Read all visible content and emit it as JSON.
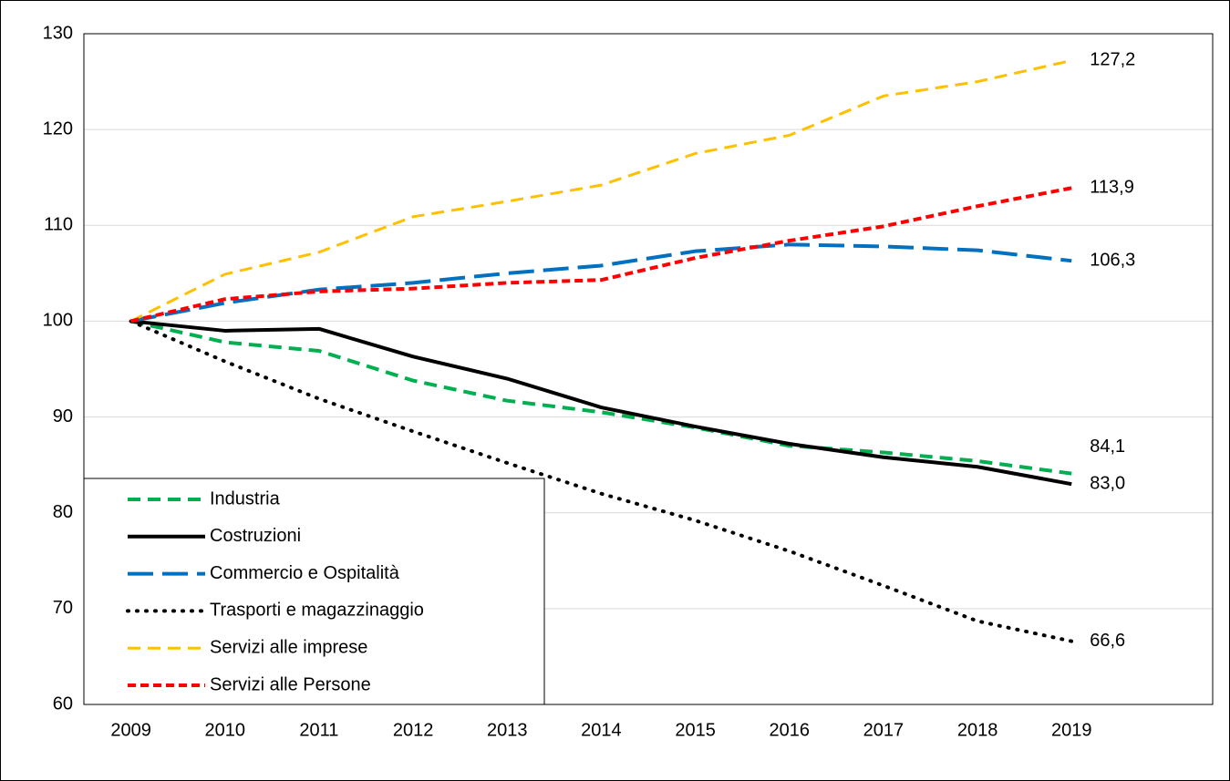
{
  "chart_data": {
    "type": "line",
    "categories": [
      "2009",
      "2010",
      "2011",
      "2012",
      "2013",
      "2014",
      "2015",
      "2016",
      "2017",
      "2018",
      "2019"
    ],
    "ylim": [
      60,
      130
    ],
    "yticks": [
      60,
      70,
      80,
      90,
      100,
      110,
      120,
      130
    ],
    "grid": true,
    "legend": "lower-left",
    "series": [
      {
        "name": "Industria",
        "color": "#00b050",
        "dash": "dashed",
        "values": [
          100,
          97.8,
          96.9,
          93.8,
          91.7,
          90.5,
          88.9,
          87.0,
          86.3,
          85.4,
          84.1
        ],
        "value_labels": [
          null,
          null,
          null,
          null,
          null,
          null,
          null,
          null,
          null,
          null,
          "84,1"
        ]
      },
      {
        "name": "Costruzioni",
        "color": "#000000",
        "dash": "solid",
        "values": [
          100,
          99.0,
          99.2,
          96.3,
          94.0,
          91.0,
          89.0,
          87.2,
          85.8,
          84.8,
          83.0
        ],
        "value_labels": [
          null,
          null,
          null,
          null,
          null,
          null,
          null,
          null,
          null,
          null,
          "83,0"
        ]
      },
      {
        "name": "Commercio e Ospitalità",
        "color": "#0070c0",
        "dash": "long-dashed",
        "values": [
          100,
          101.9,
          103.3,
          104.0,
          105.0,
          105.8,
          107.3,
          108.0,
          107.8,
          107.4,
          106.3
        ],
        "value_labels": [
          null,
          null,
          null,
          null,
          null,
          null,
          null,
          null,
          null,
          null,
          "106,3"
        ]
      },
      {
        "name": "Trasporti e magazzinaggio",
        "color": "#000000",
        "dash": "dotted",
        "values": [
          100,
          95.8,
          91.9,
          88.5,
          85.2,
          82.0,
          79.2,
          76.0,
          72.4,
          68.7,
          66.6
        ],
        "value_labels": [
          null,
          null,
          null,
          null,
          null,
          null,
          null,
          null,
          null,
          null,
          "66,6"
        ]
      },
      {
        "name": "Servizi alle imprese",
        "color": "#ffc000",
        "dash": "dashed",
        "values": [
          100,
          104.9,
          107.2,
          110.9,
          112.5,
          114.2,
          117.5,
          119.4,
          123.5,
          125.0,
          127.2
        ],
        "value_labels": [
          null,
          null,
          null,
          null,
          null,
          null,
          null,
          null,
          null,
          null,
          "127,2"
        ]
      },
      {
        "name": "Servizi alle Persone",
        "color": "#ff0000",
        "dash": "short-dashed",
        "values": [
          100,
          102.3,
          103.1,
          103.4,
          104.0,
          104.3,
          106.6,
          108.4,
          109.9,
          112.0,
          113.9
        ],
        "value_labels": [
          null,
          null,
          null,
          null,
          null,
          null,
          null,
          null,
          null,
          null,
          "113,9"
        ]
      }
    ]
  }
}
